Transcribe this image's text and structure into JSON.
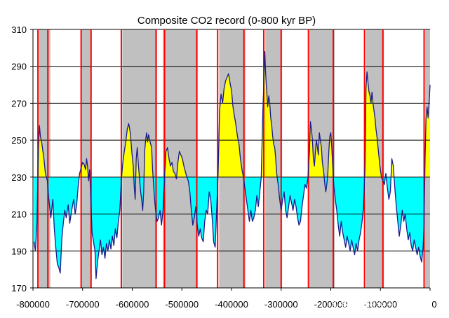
{
  "chart_data": {
    "type": "line",
    "title": "Composite CO2 record (0-800 kyr BP)",
    "xlabel": "",
    "ylabel": "",
    "xlim": [
      -800000,
      0
    ],
    "ylim": [
      170,
      310
    ],
    "x_ticks": [
      -800000,
      -700000,
      -600000,
      -500000,
      -400000,
      -300000,
      -200000,
      -100000,
      0
    ],
    "x_tick_labels": [
      "-800000",
      "-700000",
      "-600000",
      "-500000",
      "-400000",
      "-300000",
      "-200000",
      "-100000",
      "0"
    ],
    "y_ticks": [
      170,
      190,
      210,
      230,
      250,
      270,
      290,
      310
    ],
    "y_tick_labels": [
      "170",
      "190",
      "210",
      "230",
      "250",
      "270",
      "290",
      "310"
    ],
    "grid": "horizontal",
    "baseline": 230,
    "colors": {
      "line": "#1a1a8c",
      "above_fill": "#ffff00",
      "below_fill": "#00ffff",
      "shade_band": "#c0c0c0",
      "red_line": "#ff0000",
      "grid": "#000000"
    },
    "shaded_bands": [
      [
        -788000,
        -765000
      ],
      [
        -702000,
        -682000
      ],
      [
        -620000,
        -550000
      ],
      [
        -538000,
        -468000
      ],
      [
        -425000,
        -372000
      ],
      [
        -332000,
        -298000
      ],
      [
        -243000,
        -192000
      ],
      [
        -129000,
        -93000
      ],
      [
        -10000,
        0
      ]
    ],
    "red_lines": [
      -790000,
      -770000,
      -703000,
      -683000,
      -622000,
      -552000,
      -535000,
      -470000,
      -428000,
      -375000,
      -335000,
      -300000,
      -245000,
      -195000,
      -132000,
      -95000,
      -12000
    ],
    "series": [
      {
        "values": [
          [
            -798000,
            195
          ],
          [
            -795000,
            190
          ],
          [
            -792000,
            205
          ],
          [
            -789000,
            245
          ],
          [
            -787000,
            258
          ],
          [
            -785000,
            252
          ],
          [
            -782000,
            248
          ],
          [
            -778000,
            240
          ],
          [
            -775000,
            232
          ],
          [
            -771000,
            228
          ],
          [
            -768000,
            218
          ],
          [
            -764000,
            208
          ],
          [
            -760000,
            218
          ],
          [
            -757000,
            202
          ],
          [
            -754000,
            192
          ],
          [
            -751000,
            183
          ],
          [
            -748000,
            181
          ],
          [
            -745000,
            178
          ],
          [
            -742000,
            196
          ],
          [
            -739000,
            205
          ],
          [
            -736000,
            212
          ],
          [
            -733000,
            208
          ],
          [
            -729000,
            215
          ],
          [
            -726000,
            205
          ],
          [
            -722000,
            212
          ],
          [
            -718000,
            218
          ],
          [
            -715000,
            210
          ],
          [
            -712000,
            215
          ],
          [
            -709000,
            225
          ],
          [
            -706000,
            232
          ],
          [
            -703000,
            235
          ],
          [
            -700000,
            238
          ],
          [
            -697000,
            237
          ],
          [
            -694000,
            234
          ],
          [
            -692000,
            240
          ],
          [
            -690000,
            236
          ],
          [
            -688000,
            228
          ],
          [
            -686000,
            234
          ],
          [
            -684000,
            222
          ],
          [
            -681000,
            200
          ],
          [
            -678000,
            195
          ],
          [
            -675000,
            190
          ],
          [
            -673000,
            175
          ],
          [
            -670000,
            184
          ],
          [
            -667000,
            190
          ],
          [
            -664000,
            196
          ],
          [
            -661000,
            188
          ],
          [
            -658000,
            192
          ],
          [
            -655000,
            186
          ],
          [
            -652000,
            194
          ],
          [
            -649000,
            190
          ],
          [
            -646000,
            196
          ],
          [
            -643000,
            191
          ],
          [
            -640000,
            198
          ],
          [
            -637000,
            193
          ],
          [
            -634000,
            202
          ],
          [
            -631000,
            197
          ],
          [
            -628000,
            206
          ],
          [
            -625000,
            212
          ],
          [
            -622000,
            228
          ],
          [
            -619000,
            238
          ],
          [
            -616000,
            244
          ],
          [
            -613000,
            249
          ],
          [
            -610000,
            256
          ],
          [
            -607000,
            259
          ],
          [
            -604000,
            254
          ],
          [
            -601000,
            244
          ],
          [
            -598000,
            236
          ],
          [
            -596000,
            225
          ],
          [
            -594000,
            218
          ],
          [
            -592000,
            240
          ],
          [
            -590000,
            246
          ],
          [
            -588000,
            238
          ],
          [
            -585000,
            228
          ],
          [
            -583000,
            222
          ],
          [
            -581000,
            218
          ],
          [
            -579000,
            212
          ],
          [
            -577000,
            222
          ],
          [
            -575000,
            244
          ],
          [
            -573000,
            250
          ],
          [
            -571000,
            254
          ],
          [
            -569000,
            249
          ],
          [
            -567000,
            253
          ],
          [
            -565000,
            250
          ],
          [
            -563000,
            248
          ],
          [
            -561000,
            246
          ],
          [
            -559000,
            234
          ],
          [
            -557000,
            226
          ],
          [
            -555000,
            218
          ],
          [
            -553000,
            212
          ],
          [
            -550000,
            206
          ],
          [
            -547000,
            208
          ],
          [
            -544000,
            212
          ],
          [
            -541000,
            204
          ],
          [
            -538000,
            212
          ],
          [
            -535000,
            230
          ],
          [
            -532000,
            244
          ],
          [
            -529000,
            246
          ],
          [
            -526000,
            240
          ],
          [
            -523000,
            236
          ],
          [
            -520000,
            238
          ],
          [
            -517000,
            233
          ],
          [
            -514000,
            232
          ],
          [
            -511000,
            229
          ],
          [
            -508000,
            238
          ],
          [
            -505000,
            244
          ],
          [
            -502000,
            242
          ],
          [
            -499000,
            240
          ],
          [
            -496000,
            236
          ],
          [
            -493000,
            233
          ],
          [
            -490000,
            230
          ],
          [
            -487000,
            228
          ],
          [
            -484000,
            222
          ],
          [
            -481000,
            212
          ],
          [
            -478000,
            204
          ],
          [
            -475000,
            208
          ],
          [
            -472000,
            214
          ],
          [
            -469000,
            204
          ],
          [
            -466000,
            198
          ],
          [
            -463000,
            202
          ],
          [
            -460000,
            197
          ],
          [
            -457000,
            195
          ],
          [
            -454000,
            206
          ],
          [
            -451000,
            212
          ],
          [
            -448000,
            210
          ],
          [
            -445000,
            222
          ],
          [
            -442000,
            218
          ],
          [
            -439000,
            208
          ],
          [
            -436000,
            195
          ],
          [
            -433000,
            192
          ],
          [
            -430000,
            212
          ],
          [
            -427000,
            232
          ],
          [
            -424000,
            266
          ],
          [
            -421000,
            275
          ],
          [
            -418000,
            270
          ],
          [
            -415000,
            278
          ],
          [
            -412000,
            282
          ],
          [
            -409000,
            284
          ],
          [
            -406000,
            286
          ],
          [
            -403000,
            281
          ],
          [
            -400000,
            277
          ],
          [
            -397000,
            268
          ],
          [
            -394000,
            263
          ],
          [
            -391000,
            258
          ],
          [
            -388000,
            252
          ],
          [
            -385000,
            248
          ],
          [
            -382000,
            240
          ],
          [
            -379000,
            234
          ],
          [
            -376000,
            230
          ],
          [
            -373000,
            224
          ],
          [
            -370000,
            218
          ],
          [
            -367000,
            212
          ],
          [
            -364000,
            206
          ],
          [
            -361000,
            212
          ],
          [
            -358000,
            206
          ],
          [
            -355000,
            208
          ],
          [
            -352000,
            212
          ],
          [
            -349000,
            220
          ],
          [
            -346000,
            214
          ],
          [
            -343000,
            222
          ],
          [
            -340000,
            230
          ],
          [
            -337000,
            265
          ],
          [
            -335000,
            280
          ],
          [
            -333000,
            298
          ],
          [
            -331000,
            285
          ],
          [
            -329000,
            276
          ],
          [
            -327000,
            268
          ],
          [
            -325000,
            274
          ],
          [
            -323000,
            270
          ],
          [
            -321000,
            262
          ],
          [
            -319000,
            258
          ],
          [
            -317000,
            252
          ],
          [
            -315000,
            248
          ],
          [
            -313000,
            246
          ],
          [
            -311000,
            240
          ],
          [
            -309000,
            232
          ],
          [
            -306000,
            226
          ],
          [
            -303000,
            218
          ],
          [
            -300000,
            212
          ],
          [
            -297000,
            218
          ],
          [
            -294000,
            222
          ],
          [
            -291000,
            212
          ],
          [
            -288000,
            208
          ],
          [
            -285000,
            214
          ],
          [
            -282000,
            220
          ],
          [
            -279000,
            216
          ],
          [
            -276000,
            212
          ],
          [
            -273000,
            218
          ],
          [
            -270000,
            214
          ],
          [
            -267000,
            208
          ],
          [
            -264000,
            204
          ],
          [
            -261000,
            206
          ],
          [
            -258000,
            214
          ],
          [
            -255000,
            220
          ],
          [
            -252000,
            226
          ],
          [
            -249000,
            224
          ],
          [
            -246000,
            230
          ],
          [
            -243000,
            244
          ],
          [
            -241000,
            260
          ],
          [
            -239000,
            256
          ],
          [
            -237000,
            250
          ],
          [
            -235000,
            240
          ],
          [
            -233000,
            236
          ],
          [
            -231000,
            244
          ],
          [
            -229000,
            250
          ],
          [
            -227000,
            246
          ],
          [
            -225000,
            242
          ],
          [
            -223000,
            254
          ],
          [
            -221000,
            250
          ],
          [
            -219000,
            246
          ],
          [
            -217000,
            238
          ],
          [
            -214000,
            232
          ],
          [
            -212000,
            226
          ],
          [
            -210000,
            222
          ],
          [
            -208000,
            226
          ],
          [
            -206000,
            232
          ],
          [
            -204000,
            244
          ],
          [
            -202000,
            252
          ],
          [
            -200000,
            254
          ],
          [
            -198000,
            246
          ],
          [
            -196000,
            236
          ],
          [
            -194000,
            226
          ],
          [
            -191000,
            218
          ],
          [
            -188000,
            212
          ],
          [
            -185000,
            204
          ],
          [
            -182000,
            198
          ],
          [
            -179000,
            206
          ],
          [
            -176000,
            200
          ],
          [
            -173000,
            196
          ],
          [
            -170000,
            192
          ],
          [
            -167000,
            198
          ],
          [
            -164000,
            194
          ],
          [
            -161000,
            190
          ],
          [
            -158000,
            196
          ],
          [
            -155000,
            192
          ],
          [
            -152000,
            188
          ],
          [
            -149000,
            194
          ],
          [
            -146000,
            190
          ],
          [
            -143000,
            196
          ],
          [
            -140000,
            200
          ],
          [
            -137000,
            206
          ],
          [
            -134000,
            214
          ],
          [
            -131000,
            236
          ],
          [
            -129000,
            278
          ],
          [
            -127000,
            287
          ],
          [
            -125000,
            281
          ],
          [
            -123000,
            276
          ],
          [
            -121000,
            274
          ],
          [
            -119000,
            270
          ],
          [
            -117000,
            276
          ],
          [
            -115000,
            270
          ],
          [
            -113000,
            266
          ],
          [
            -111000,
            262
          ],
          [
            -109000,
            256
          ],
          [
            -107000,
            252
          ],
          [
            -104000,
            244
          ],
          [
            -101000,
            236
          ],
          [
            -98000,
            230
          ],
          [
            -95000,
            228
          ],
          [
            -92000,
            226
          ],
          [
            -89000,
            232
          ],
          [
            -86000,
            224
          ],
          [
            -83000,
            218
          ],
          [
            -80000,
            222
          ],
          [
            -77000,
            240
          ],
          [
            -74000,
            236
          ],
          [
            -71000,
            224
          ],
          [
            -68000,
            214
          ],
          [
            -65000,
            206
          ],
          [
            -62000,
            198
          ],
          [
            -59000,
            204
          ],
          [
            -56000,
            212
          ],
          [
            -53000,
            206
          ],
          [
            -50000,
            210
          ],
          [
            -47000,
            202
          ],
          [
            -44000,
            196
          ],
          [
            -41000,
            200
          ],
          [
            -38000,
            193
          ],
          [
            -35000,
            190
          ],
          [
            -32000,
            196
          ],
          [
            -29000,
            192
          ],
          [
            -26000,
            188
          ],
          [
            -23000,
            192
          ],
          [
            -20000,
            187
          ],
          [
            -17000,
            184
          ],
          [
            -14000,
            192
          ],
          [
            -12000,
            205
          ],
          [
            -10000,
            240
          ],
          [
            -8000,
            262
          ],
          [
            -6000,
            268
          ],
          [
            -4000,
            262
          ],
          [
            -2000,
            270
          ],
          [
            0,
            280
          ]
        ]
      }
    ]
  }
}
